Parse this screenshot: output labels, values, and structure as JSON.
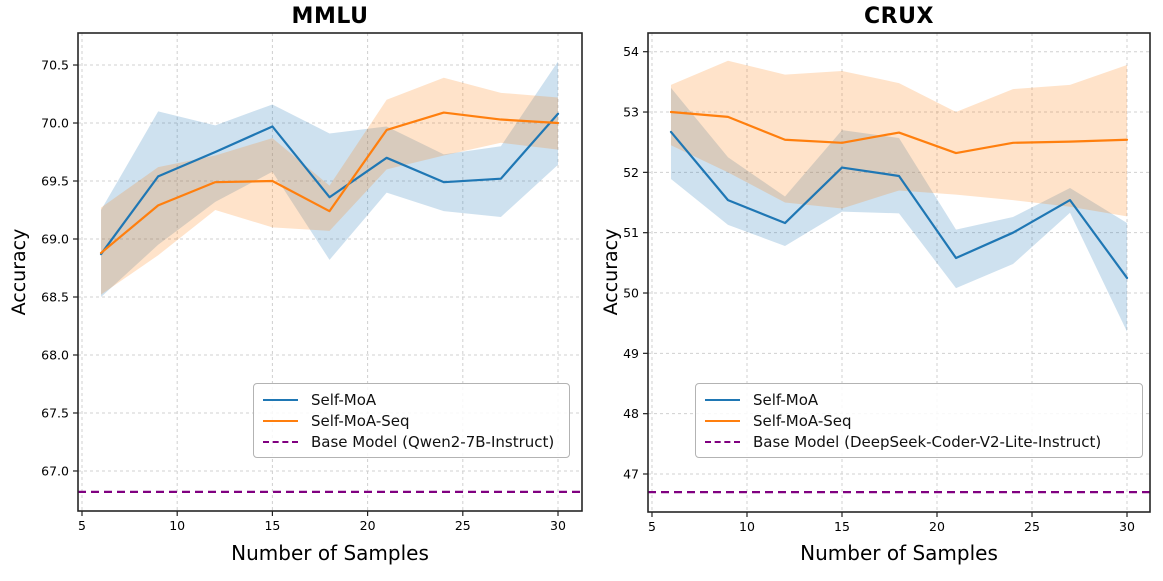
{
  "figure_background": "#ffffff",
  "chart_data": [
    {
      "type": "line",
      "title": "MMLU",
      "xlabel": "Number of Samples",
      "ylabel": "Accuracy",
      "xlim": [
        4.79,
        31.26
      ],
      "ylim": [
        66.655,
        70.776
      ],
      "grid": true,
      "legend_position": "lower center-right inside plot",
      "xticks": {
        "values": [
          5,
          10,
          15,
          20,
          25,
          30
        ],
        "labels": [
          "5",
          "10",
          "15",
          "20",
          "25",
          "30"
        ]
      },
      "yticks": {
        "values": [
          67.0,
          67.5,
          68.0,
          68.5,
          69.0,
          69.5,
          70.0,
          70.5
        ],
        "labels": [
          "67.0",
          "67.5",
          "68.0",
          "68.5",
          "69.0",
          "69.5",
          "70.0",
          "70.5"
        ]
      },
      "x": [
        6,
        9,
        12,
        15,
        18,
        21,
        24,
        27,
        30
      ],
      "series": [
        {
          "name": "Self-MoA",
          "color": "#1f77b4",
          "band_color": "rgba(31,119,180,0.22)",
          "values": [
            68.87,
            69.54,
            69.75,
            69.97,
            69.36,
            69.7,
            69.49,
            69.52,
            70.08
          ],
          "band_lower": [
            68.5,
            68.95,
            69.32,
            69.58,
            68.82,
            69.4,
            69.24,
            69.19,
            69.64
          ],
          "band_upper": [
            69.25,
            70.1,
            69.98,
            70.16,
            69.91,
            69.97,
            69.73,
            69.8,
            70.53
          ]
        },
        {
          "name": "Self-MoA-Seq",
          "color": "#ff7f0e",
          "band_color": "rgba(255,127,14,0.22)",
          "values": [
            68.88,
            69.29,
            69.49,
            69.5,
            69.24,
            69.94,
            70.09,
            70.03,
            70.0
          ],
          "band_lower": [
            68.52,
            68.86,
            69.25,
            69.1,
            69.07,
            69.6,
            69.72,
            69.83,
            69.77
          ],
          "band_upper": [
            69.27,
            69.62,
            69.72,
            69.87,
            69.46,
            70.2,
            70.39,
            70.26,
            70.22
          ]
        }
      ],
      "baseline": {
        "name": "Base Model (Qwen2-7B-Instruct)",
        "color": "#800080",
        "style": "dashed",
        "value": 66.82
      }
    },
    {
      "type": "line",
      "title": "CRUX",
      "xlabel": "Number of Samples",
      "ylabel": "Accuracy",
      "xlim": [
        4.79,
        31.21
      ],
      "ylim": [
        46.37,
        54.31
      ],
      "grid": true,
      "legend_position": "lower center-right inside plot",
      "xticks": {
        "values": [
          5,
          10,
          15,
          20,
          25,
          30
        ],
        "labels": [
          "5",
          "10",
          "15",
          "20",
          "25",
          "30"
        ]
      },
      "yticks": {
        "values": [
          47,
          48,
          49,
          50,
          51,
          52,
          53,
          54
        ],
        "labels": [
          "47",
          "48",
          "49",
          "50",
          "51",
          "52",
          "53",
          "54"
        ]
      },
      "x": [
        6,
        9,
        12,
        15,
        18,
        21,
        24,
        27,
        30
      ],
      "series": [
        {
          "name": "Self-MoA",
          "color": "#1f77b4",
          "band_color": "rgba(31,119,180,0.22)",
          "values": [
            52.67,
            51.54,
            51.16,
            52.08,
            51.94,
            50.58,
            51.0,
            51.54,
            50.25
          ],
          "band_lower": [
            51.89,
            51.13,
            50.78,
            51.35,
            51.32,
            50.08,
            50.48,
            51.33,
            49.36
          ],
          "band_upper": [
            53.4,
            52.25,
            51.6,
            52.7,
            52.57,
            51.05,
            51.26,
            51.74,
            51.16
          ]
        },
        {
          "name": "Self-MoA-Seq",
          "color": "#ff7f0e",
          "band_color": "rgba(255,127,14,0.22)",
          "values": [
            53.0,
            52.92,
            52.54,
            52.49,
            52.66,
            52.32,
            52.49,
            52.51,
            52.54
          ],
          "band_lower": [
            52.45,
            52.0,
            51.5,
            51.4,
            51.7,
            51.63,
            51.54,
            51.43,
            51.27
          ],
          "band_upper": [
            53.45,
            53.85,
            53.62,
            53.68,
            53.48,
            53.0,
            53.38,
            53.45,
            53.78
          ]
        }
      ],
      "baseline": {
        "name": "Base Model (DeepSeek-Coder-V2-Lite-Instruct)",
        "color": "#800080",
        "style": "dashed",
        "value": 46.7
      }
    }
  ],
  "style_tokens": {
    "grid_color": "#d0d0d0",
    "frame_color": "#262626",
    "tick_color": "#222222"
  }
}
